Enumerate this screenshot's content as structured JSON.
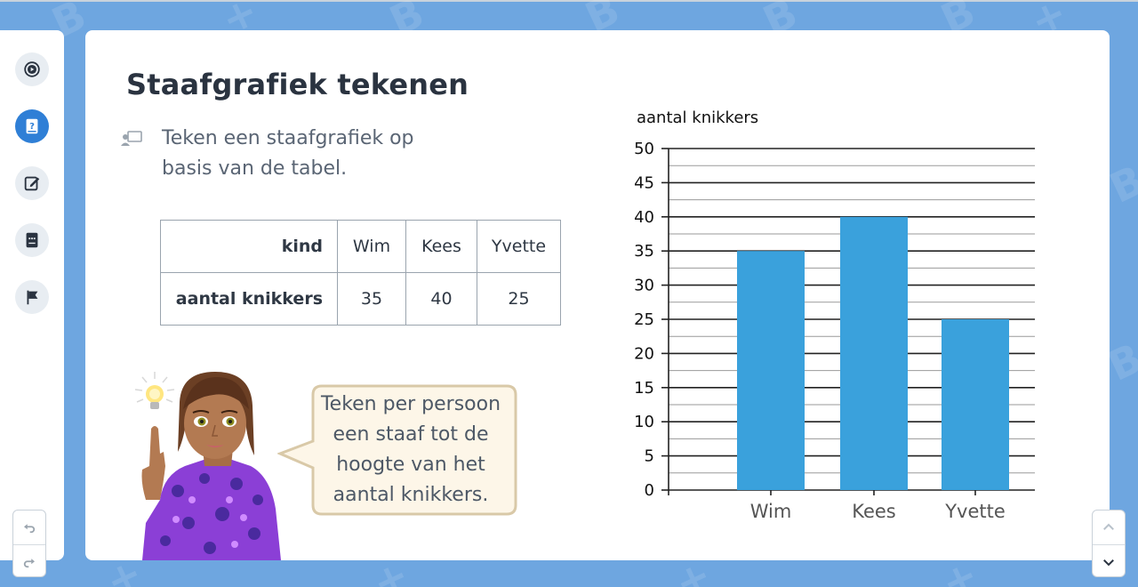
{
  "page": {
    "title": "Staafgrafiek tekenen",
    "instruction": "Teken een staafgrafiek op basis van de tabel.",
    "bubble_text": "Teken per persoon een staaf tot de hoogte van het aantal knikkers."
  },
  "sidebar": {
    "items": [
      {
        "icon": "play-circle-icon"
      },
      {
        "icon": "question-book-icon",
        "active": true
      },
      {
        "icon": "edit-note-icon"
      },
      {
        "icon": "keyboard-book-icon"
      },
      {
        "icon": "flag-icon"
      }
    ]
  },
  "table": {
    "header_label": "kind",
    "value_label": "aantal knikkers",
    "names": [
      "Wim",
      "Kees",
      "Yvette"
    ],
    "values": [
      "35",
      "40",
      "25"
    ]
  },
  "chart_data": {
    "type": "bar",
    "categories": [
      "Wim",
      "Kees",
      "Yvette"
    ],
    "values": [
      35,
      40,
      25
    ],
    "title": "",
    "xlabel": "",
    "ylabel": "aantal knikkers",
    "ylim": [
      0,
      50
    ],
    "yticks": [
      0,
      5,
      10,
      15,
      20,
      25,
      30,
      35,
      40,
      45,
      50
    ],
    "grid": true,
    "bar_color": "#3aa1dc"
  },
  "colors": {
    "background": "#6ea6e0",
    "accent": "#2f7fd6",
    "bar": "#3aa1dc",
    "bubble_fill": "#fdf6e8",
    "bubble_border": "#d9c9a8"
  }
}
